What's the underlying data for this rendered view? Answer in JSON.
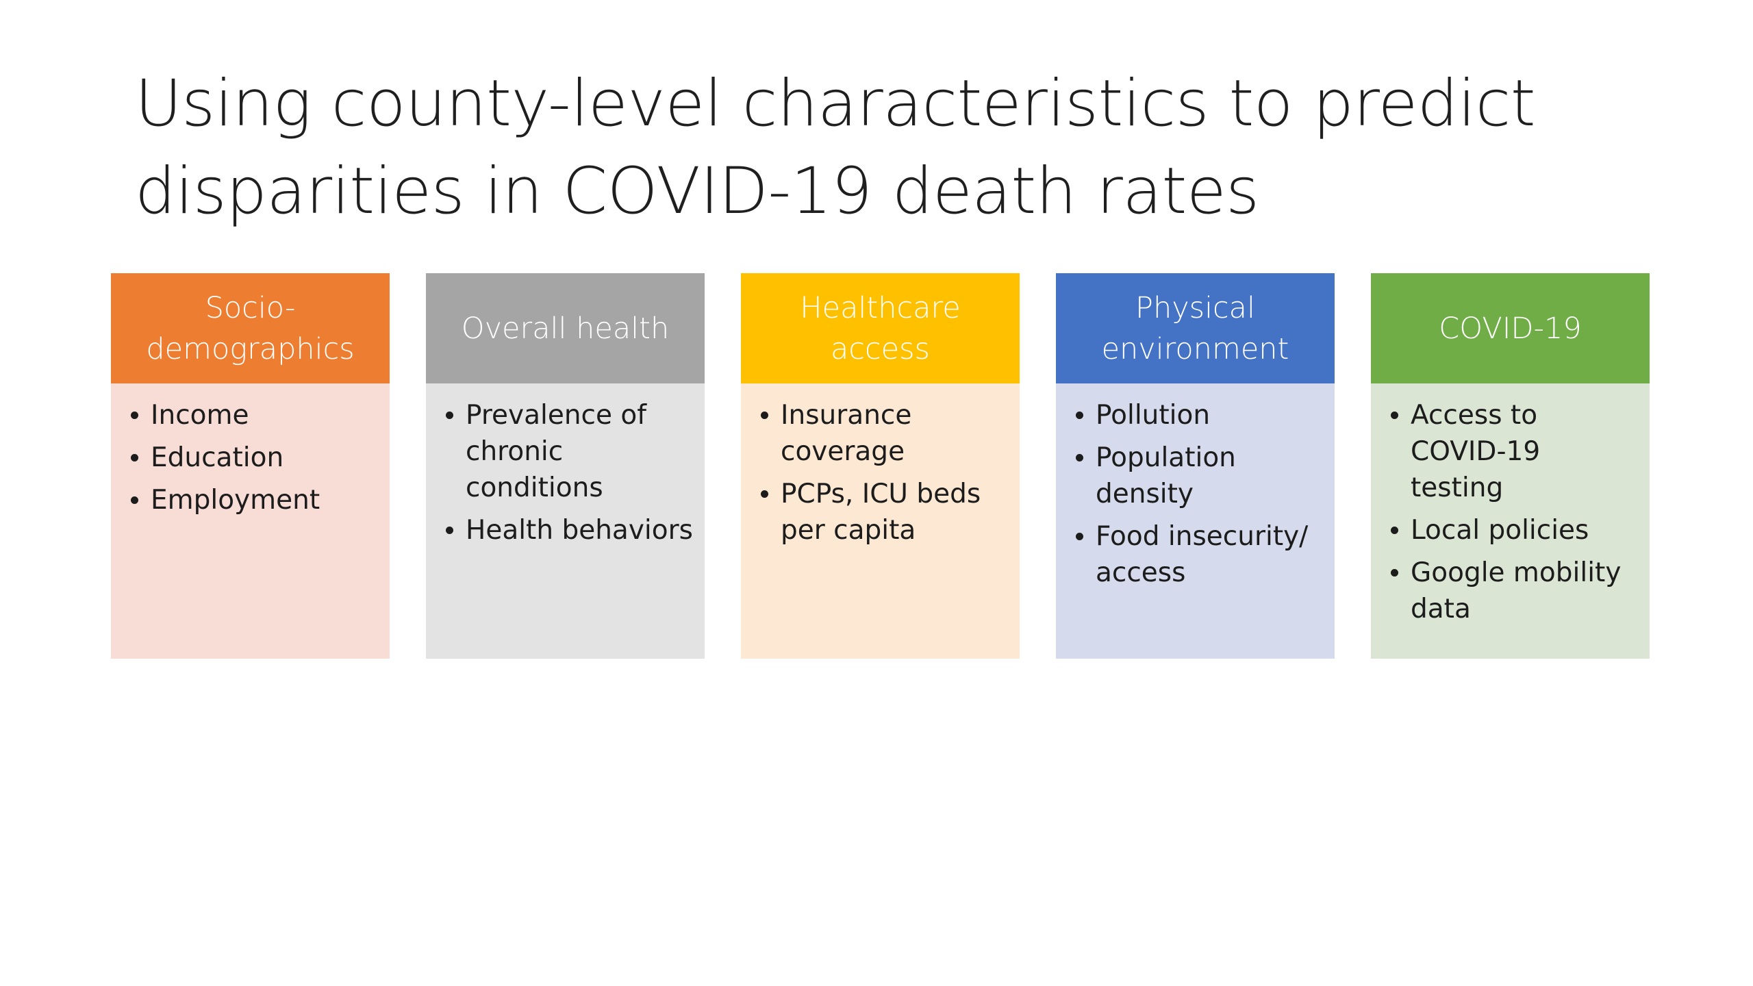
{
  "slide": {
    "title_lines": [
      "Using county-level characteristics to predict",
      "disparities in COVID-19 death rates"
    ]
  },
  "columns": [
    {
      "header": "Socio-demographics",
      "header_color": "#ed7d31",
      "body_color": "#f8dcd6",
      "items": [
        "Income",
        "Education",
        "Employment"
      ]
    },
    {
      "header": "Overall health",
      "header_color": "#a5a5a5",
      "body_color": "#e3e3e3",
      "items": [
        "Prevalence of chronic conditions",
        "Health behaviors"
      ]
    },
    {
      "header": "Healthcare access",
      "header_color": "#ffc000",
      "body_color": "#fde9d3",
      "items": [
        "Insurance coverage",
        "PCPs, ICU beds per capita"
      ]
    },
    {
      "header": "Physical environment",
      "header_color": "#4472c4",
      "body_color": "#d5dbec",
      "items": [
        "Pollution",
        "Population density",
        "Food insecurity/ access"
      ]
    },
    {
      "header": "COVID-19",
      "header_color": "#70ad47",
      "body_color": "#dae5d3",
      "items": [
        "Access to COVID-19 testing",
        "Local policies",
        "Google mobility data"
      ]
    }
  ]
}
